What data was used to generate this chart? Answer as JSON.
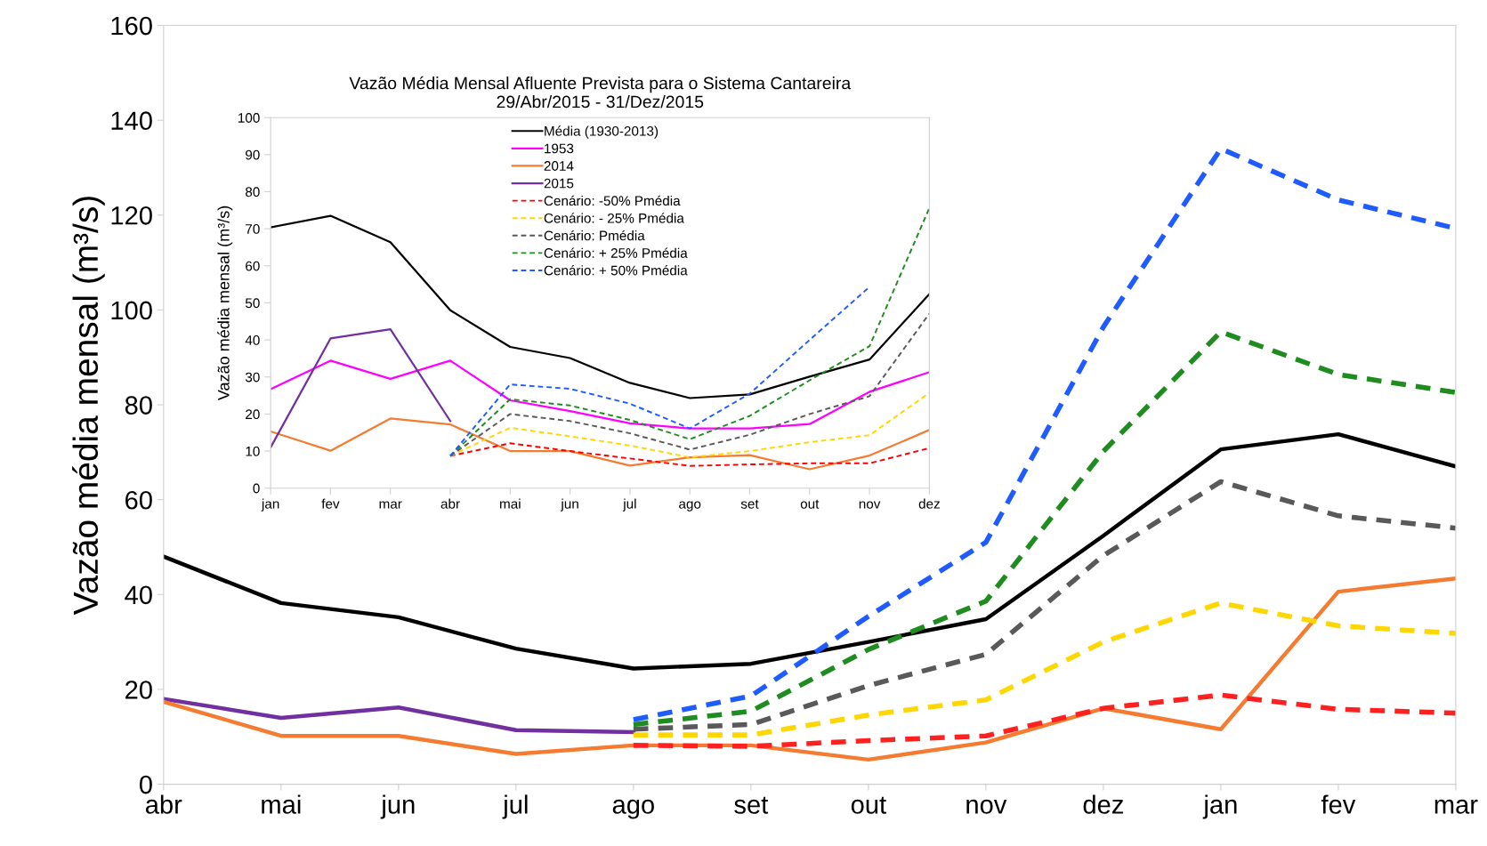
{
  "chart_data": [
    {
      "type": "line",
      "ylabel": "Vazão média mensal (m³/s)",
      "categories": [
        "abr",
        "mai",
        "jun",
        "jul",
        "ago",
        "set",
        "out",
        "nov",
        "dez",
        "jan",
        "fev",
        "mar"
      ],
      "ylim": [
        0,
        160
      ],
      "yticks": [
        0,
        20,
        40,
        60,
        80,
        100,
        120,
        140,
        160
      ],
      "grid": false,
      "legend": false,
      "marker": "none",
      "series": [
        {
          "color": "#000000",
          "line_style": "solid",
          "values": [
            48,
            38.2,
            35.2,
            28.6,
            24.4,
            25.4,
            30,
            34.8,
            52.4,
            70.6,
            73.8,
            67
          ]
        },
        {
          "color": "#7030a0",
          "line_style": "solid",
          "values": [
            18,
            14,
            16.2,
            11.4,
            11,
            null,
            null,
            null,
            null,
            null,
            null,
            null
          ]
        },
        {
          "color": "#f47b30",
          "line_style": "solid",
          "values": [
            17.4,
            10.2,
            10.2,
            6.4,
            8.2,
            8.2,
            5.2,
            8.8,
            16,
            11.6,
            40.6,
            43.4
          ]
        },
        {
          "color": "#ff2020",
          "line_style": "dashed",
          "values": [
            null,
            null,
            null,
            null,
            8.2,
            8,
            9.2,
            10.2,
            16,
            18.8,
            15.8,
            15
          ]
        },
        {
          "color": "#ffd700",
          "line_style": "dashed",
          "values": [
            null,
            null,
            null,
            null,
            10.4,
            10.4,
            14.6,
            17.8,
            30,
            38.2,
            33.4,
            31.8
          ]
        },
        {
          "color": "#595959",
          "line_style": "dashed",
          "values": [
            null,
            null,
            null,
            null,
            11.6,
            12.6,
            20.8,
            27.4,
            48.2,
            63.8,
            56.6,
            54
          ]
        },
        {
          "color": "#1e8c1e",
          "line_style": "dashed",
          "values": [
            null,
            null,
            null,
            null,
            12.6,
            15.4,
            28.4,
            38.6,
            70.2,
            95.4,
            86.4,
            82.6
          ]
        },
        {
          "color": "#1f5cff",
          "line_style": "dashed",
          "values": [
            null,
            null,
            null,
            null,
            13.6,
            18.6,
            35.4,
            51,
            96.4,
            134,
            123.2,
            117.2
          ]
        }
      ]
    },
    {
      "type": "line",
      "title": "Vazão Média Mensal Afluente Prevista para o Sistema Cantareira\n29/Abr/2015 - 31/Dez/2015",
      "ylabel": "Vazão média mensal (m³/s)",
      "categories": [
        "jan",
        "fev",
        "mar",
        "abr",
        "mai",
        "jun",
        "jul",
        "ago",
        "set",
        "out",
        "nov",
        "dez"
      ],
      "ylim": [
        0,
        100
      ],
      "yticks": [
        0,
        10,
        20,
        30,
        40,
        50,
        60,
        70,
        80,
        90,
        100
      ],
      "grid": false,
      "legend": "top",
      "marker": "none",
      "series": [
        {
          "name": "Média (1930-2013)",
          "color": "#000000",
          "line_style": "solid",
          "values": [
            70.4,
            73.5,
            66.4,
            48,
            38.1,
            35.1,
            28.4,
            24.3,
            25.3,
            30.1,
            34.7,
            52.4
          ]
        },
        {
          "name": "1953",
          "color": "#ff00ff",
          "line_style": "solid",
          "values": [
            26.7,
            34.4,
            29.5,
            34.4,
            23.7,
            20.8,
            17.5,
            16.1,
            16.1,
            17.3,
            26,
            31.3
          ]
        },
        {
          "name": "2014",
          "color": "#f47b30",
          "line_style": "solid",
          "values": [
            15.3,
            10.1,
            18.8,
            17.2,
            10,
            10,
            6.1,
            8.3,
            8.9,
            5.1,
            8.8,
            15.7
          ]
        },
        {
          "name": "2015",
          "color": "#7030a0",
          "line_style": "solid",
          "values": [
            11,
            40.4,
            42.9,
            18.1,
            null,
            null,
            null,
            null,
            null,
            null,
            null,
            null
          ]
        },
        {
          "name": "Cenário: -50% Pmédia",
          "color": "#ff0000",
          "line_style": "dashed",
          "values": [
            null,
            null,
            null,
            8.7,
            12.1,
            10,
            8,
            6,
            6.4,
            6.7,
            6.7,
            10.8
          ]
        },
        {
          "name": "Cenário: - 25% Pmédia",
          "color": "#ffd700",
          "line_style": "dashed",
          "values": [
            null,
            null,
            null,
            8.7,
            16.3,
            14,
            11.5,
            8.3,
            10,
            12.4,
            14.3,
            25.7
          ]
        },
        {
          "name": "Cenário: Pmédia",
          "color": "#595959",
          "line_style": "dashed",
          "values": [
            null,
            null,
            null,
            8.7,
            20,
            18.1,
            14.8,
            10.4,
            14.4,
            20,
            24.8,
            47.1
          ]
        },
        {
          "name": "Cenário: + 25% Pmédia",
          "color": "#1e8c1e",
          "line_style": "dashed",
          "values": [
            null,
            null,
            null,
            8.7,
            24,
            22.3,
            18.4,
            13.2,
            19.5,
            29.1,
            38.3,
            75.6
          ]
        },
        {
          "name": "Cenário: + 50% Pmédia",
          "color": "#1f5cff",
          "line_style": "dashed",
          "values": [
            null,
            null,
            null,
            8.7,
            28,
            26.8,
            22.8,
            16.1,
            25.5,
            40,
            54.3,
            null
          ]
        }
      ]
    }
  ]
}
